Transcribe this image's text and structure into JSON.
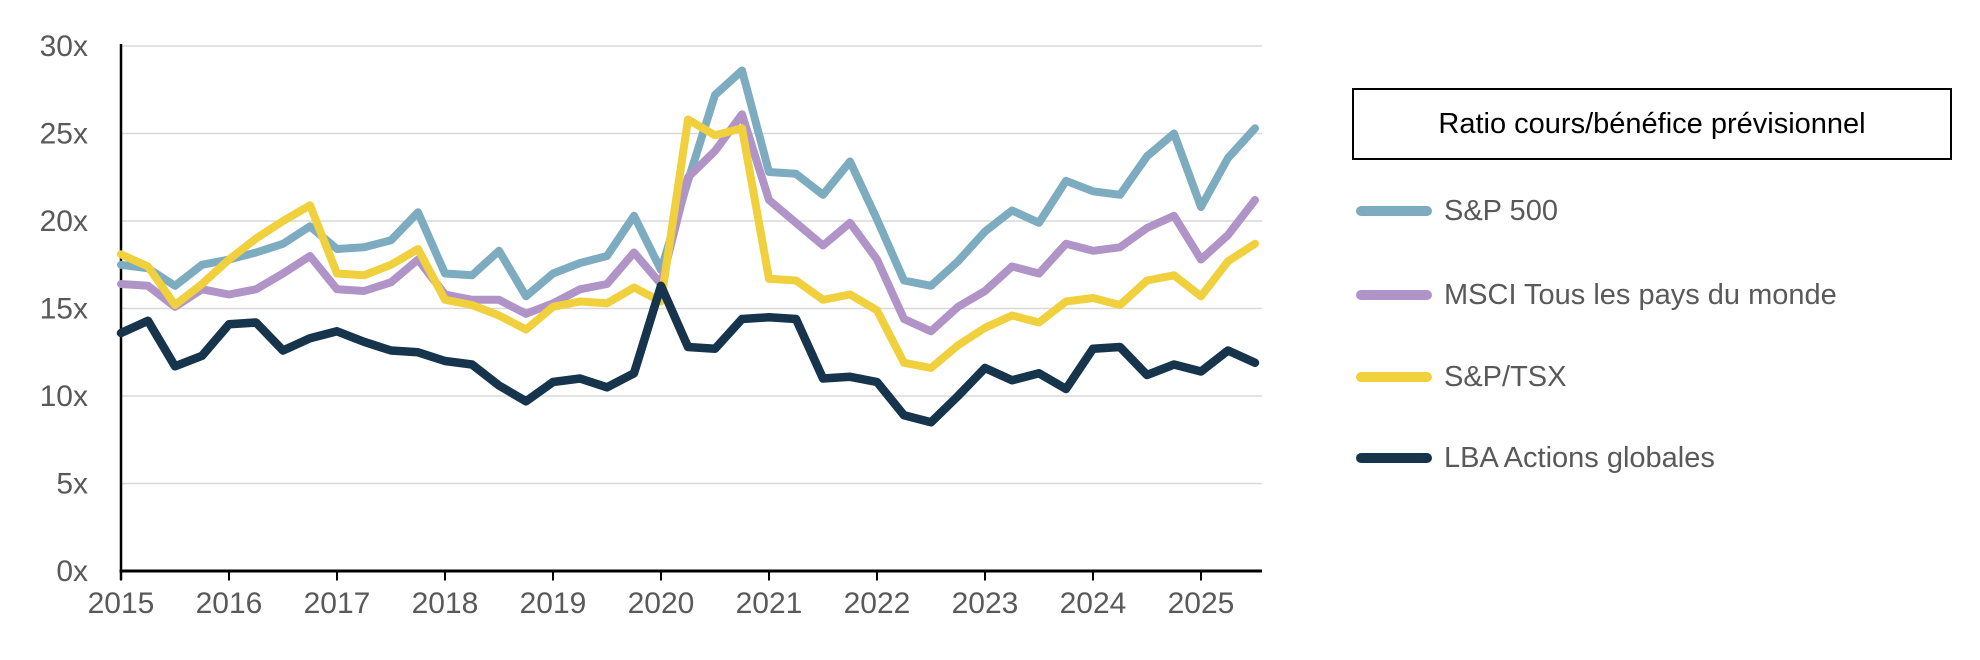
{
  "legend": {
    "title": "Ratio cours/bénéfice prévisionnel"
  },
  "chart_data": {
    "type": "line",
    "title": "Ratio cours/bénéfice prévisionnel",
    "x_unit": "quarterly",
    "x_start": "2015-Q1",
    "x_end": "2025-Q3",
    "x_tick_labels": [
      "2015",
      "2016",
      "2017",
      "2018",
      "2019",
      "2020",
      "2021",
      "2022",
      "2023",
      "2024",
      "2025"
    ],
    "ylim": [
      0,
      30
    ],
    "ytick_labels": [
      "0x",
      "5x",
      "10x",
      "15x",
      "20x",
      "25x",
      "30x"
    ],
    "grid": "horizontal",
    "legend_position": "right",
    "axis_color": "#000000",
    "gridline_color": "#D9D9D9",
    "label_color": "#595959",
    "series": [
      {
        "name": "S&P 500",
        "color": "#7DACC0",
        "values": [
          17.5,
          17.3,
          16.3,
          17.5,
          17.8,
          18.2,
          18.7,
          19.7,
          18.4,
          18.5,
          18.9,
          20.5,
          17.0,
          16.9,
          18.3,
          15.7,
          17.0,
          17.6,
          18.0,
          20.3,
          17.2,
          22.3,
          27.2,
          28.6,
          22.8,
          22.7,
          21.5,
          23.4,
          20.1,
          16.6,
          16.3,
          17.7,
          19.4,
          20.6,
          19.9,
          22.3,
          21.7,
          21.5,
          23.7,
          25.0,
          20.8,
          23.6,
          25.3
        ]
      },
      {
        "name": "MSCI Tous les pays du monde",
        "color": "#B094C7",
        "values": [
          16.4,
          16.3,
          15.1,
          16.1,
          15.8,
          16.1,
          17.0,
          18.0,
          16.1,
          16.0,
          16.5,
          17.8,
          15.8,
          15.5,
          15.5,
          14.7,
          15.3,
          16.1,
          16.4,
          18.2,
          16.4,
          22.5,
          24.0,
          26.1,
          21.2,
          19.9,
          18.6,
          19.9,
          17.8,
          14.4,
          13.7,
          15.1,
          16.0,
          17.4,
          17.0,
          18.7,
          18.3,
          18.5,
          19.6,
          20.3,
          17.8,
          19.2,
          21.2
        ]
      },
      {
        "name": "S&P/TSX",
        "color": "#F0D03C",
        "values": [
          18.1,
          17.4,
          15.2,
          16.4,
          17.8,
          19.0,
          20.0,
          20.9,
          17.0,
          16.9,
          17.5,
          18.4,
          15.5,
          15.2,
          14.6,
          13.8,
          15.1,
          15.4,
          15.3,
          16.2,
          15.4,
          25.8,
          24.9,
          25.3,
          16.7,
          16.6,
          15.5,
          15.8,
          14.9,
          11.9,
          11.6,
          12.9,
          13.9,
          14.6,
          14.2,
          15.4,
          15.6,
          15.2,
          16.6,
          16.9,
          15.7,
          17.7,
          18.7
        ]
      },
      {
        "name": "LBA Actions globales",
        "color": "#16354D",
        "values": [
          13.6,
          14.3,
          11.7,
          12.3,
          14.1,
          14.2,
          12.6,
          13.3,
          13.7,
          13.1,
          12.6,
          12.5,
          12.0,
          11.8,
          10.6,
          9.7,
          10.8,
          11.0,
          10.5,
          11.3,
          16.3,
          12.8,
          12.7,
          14.4,
          14.5,
          14.4,
          11.0,
          11.1,
          10.8,
          8.9,
          8.5,
          10.0,
          11.6,
          10.9,
          11.3,
          10.4,
          12.7,
          12.8,
          11.2,
          11.8,
          11.4,
          12.6,
          11.9
        ]
      }
    ]
  }
}
